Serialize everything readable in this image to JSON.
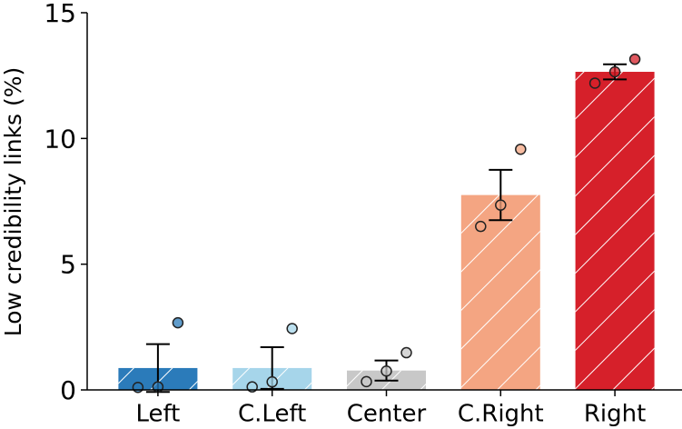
{
  "chart_data": {
    "type": "bar",
    "ylabel": "Low credibility links (%)",
    "categories": [
      "Left",
      "C.Left",
      "Center",
      "C.Right",
      "Right"
    ],
    "values": [
      0.87,
      0.87,
      0.77,
      7.75,
      12.65
    ],
    "errors": [
      0.95,
      0.83,
      0.4,
      1.0,
      0.3
    ],
    "points": [
      [
        0.1,
        0.12,
        2.67
      ],
      [
        0.12,
        0.32,
        2.44
      ],
      [
        0.33,
        0.75,
        1.48
      ],
      [
        6.5,
        7.35,
        9.57
      ],
      [
        12.2,
        12.65,
        13.15
      ]
    ],
    "colors": [
      "#2b7bba",
      "#a6d5ea",
      "#c8c8c8",
      "#f4a582",
      "#d6202a"
    ],
    "ylim": [
      0,
      15
    ],
    "yticks": [
      0,
      5,
      10,
      15
    ],
    "hatch": true
  }
}
